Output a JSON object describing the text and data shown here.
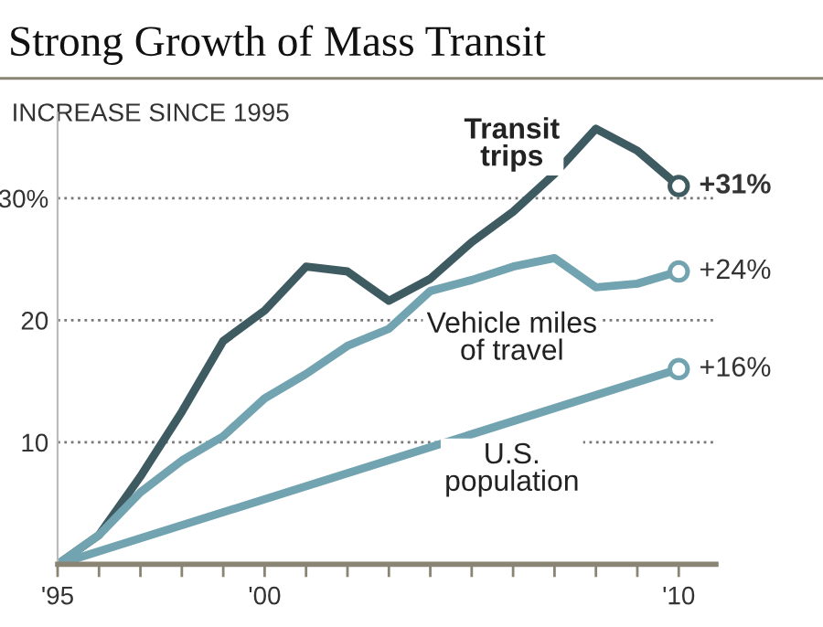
{
  "chart_data": {
    "type": "line",
    "title": "Strong Growth of Mass Transit",
    "ylabel": "INCREASE SINCE 1995",
    "xlim": [
      1995,
      2010.9
    ],
    "xticks": [
      {
        "value": 1995,
        "label": "'95"
      },
      {
        "value": 1996,
        "label": null
      },
      {
        "value": 1997,
        "label": null
      },
      {
        "value": 1998,
        "label": null
      },
      {
        "value": 1999,
        "label": null
      },
      {
        "value": 2000,
        "label": "'00"
      },
      {
        "value": 2001,
        "label": null
      },
      {
        "value": 2002,
        "label": null
      },
      {
        "value": 2003,
        "label": null
      },
      {
        "value": 2004,
        "label": null
      },
      {
        "value": 2005,
        "label": null
      },
      {
        "value": 2006,
        "label": null
      },
      {
        "value": 2007,
        "label": null
      },
      {
        "value": 2008,
        "label": null
      },
      {
        "value": 2009,
        "label": null
      },
      {
        "value": 2010,
        "label": "'10"
      }
    ],
    "ylim": [
      0,
      37
    ],
    "yticks": [
      {
        "value": 10,
        "label": "10"
      },
      {
        "value": 20,
        "label": "20"
      },
      {
        "value": 30,
        "label": "30%"
      }
    ],
    "grid": "y",
    "line_style": "solid",
    "series": [
      {
        "name": "Transit trips",
        "color": "#3f5b62",
        "x": [
          1995,
          1996,
          1997,
          1998,
          1999,
          2000,
          2001,
          2002,
          2003,
          2004,
          2005,
          2006,
          2007,
          2008,
          2009,
          2010
        ],
        "values": [
          0,
          2.4,
          7.2,
          12.5,
          18.3,
          20.8,
          24.4,
          24.0,
          21.6,
          23.4,
          26.4,
          28.9,
          32,
          35.7,
          33.9,
          31
        ],
        "value_labels": [
          null,
          null,
          null,
          null,
          null,
          null,
          null,
          null,
          null,
          null,
          null,
          null,
          null,
          null,
          null,
          "+31%"
        ]
      },
      {
        "name": "Vehicle miles of travel",
        "color": "#72a3b0",
        "x": [
          1995,
          1996,
          1997,
          1998,
          1999,
          2000,
          2001,
          2002,
          2003,
          2004,
          2005,
          2006,
          2007,
          2008,
          2009,
          2010
        ],
        "values": [
          0,
          2.4,
          5.9,
          8.5,
          10.5,
          13.6,
          15.6,
          17.9,
          19.3,
          22.4,
          23.3,
          24.4,
          25.1,
          22.7,
          23.0,
          24
        ],
        "value_labels": [
          null,
          null,
          null,
          null,
          null,
          null,
          null,
          null,
          null,
          null,
          null,
          null,
          null,
          null,
          null,
          "+24%"
        ]
      },
      {
        "name": "U.S. population",
        "color": "#72a3b0",
        "x": [
          1995,
          2010
        ],
        "values": [
          0,
          16
        ],
        "value_labels": [
          null,
          "+16%"
        ]
      }
    ],
    "legend": false
  }
}
